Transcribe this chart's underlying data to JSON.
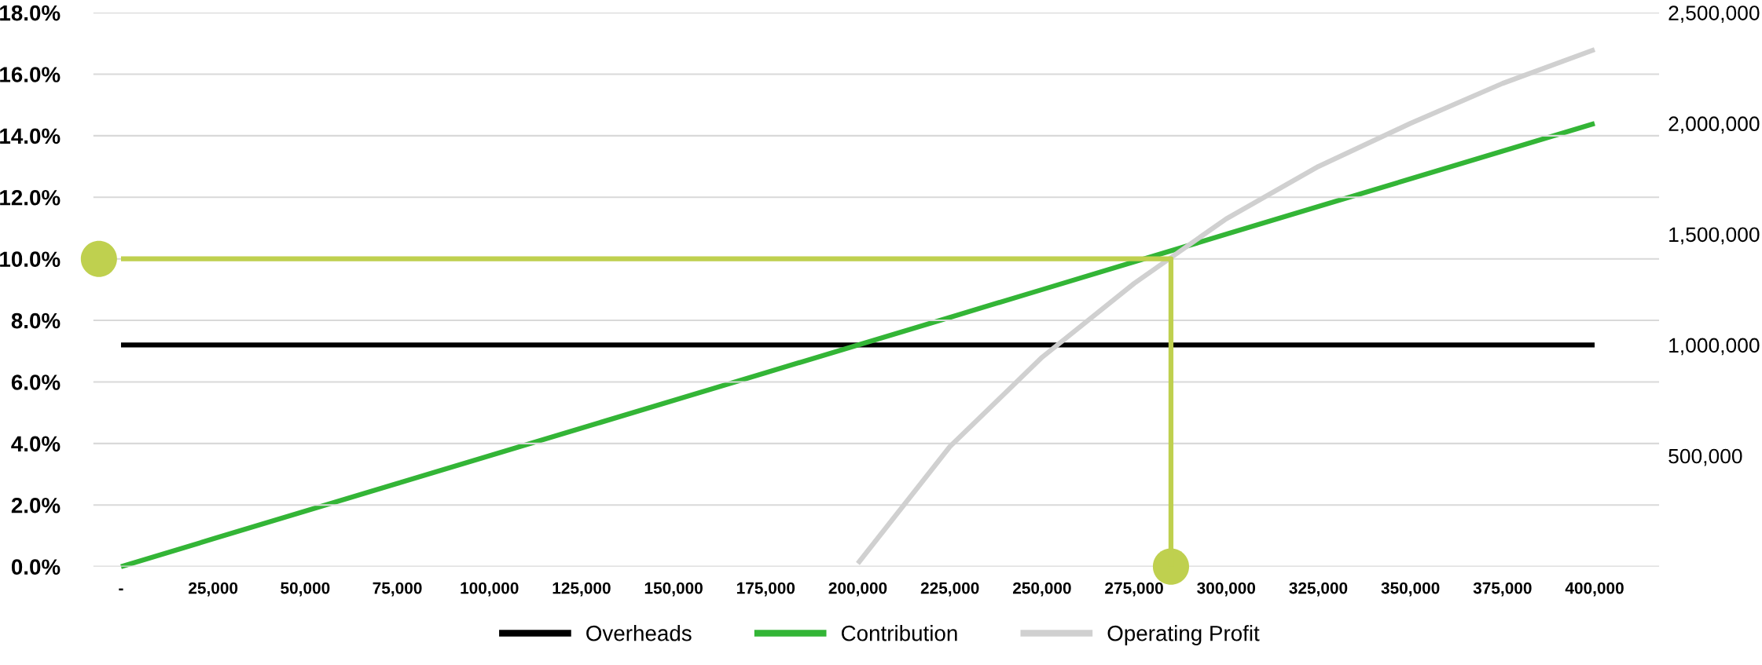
{
  "chart_data": {
    "type": "line",
    "x": [
      0,
      25000,
      50000,
      75000,
      100000,
      125000,
      150000,
      175000,
      200000,
      225000,
      250000,
      275000,
      300000,
      325000,
      350000,
      375000,
      400000
    ],
    "series": [
      {
        "name": "Overheads",
        "color": "#000000",
        "axis": "y2",
        "values": [
          1000000,
          1000000,
          1000000,
          1000000,
          1000000,
          1000000,
          1000000,
          1000000,
          1000000,
          1000000,
          1000000,
          1000000,
          1000000,
          1000000,
          1000000,
          1000000,
          1000000
        ]
      },
      {
        "name": "Contribution",
        "color": "#33b536",
        "axis": "y2",
        "values": [
          0,
          125000,
          250000,
          375000,
          500000,
          625000,
          750000,
          875000,
          1000000,
          1125000,
          1250000,
          1375000,
          1500000,
          1625000,
          1750000,
          1875000,
          2000000
        ]
      },
      {
        "name": "Operating Profit",
        "color": "#d0d0d0",
        "x": [
          200000,
          225000,
          250000,
          275000,
          300000,
          325000,
          350000,
          375000,
          400000
        ],
        "values": [
          0.1,
          3.9,
          6.8,
          9.2,
          11.3,
          13.0,
          14.4,
          15.7,
          16.8
        ]
      },
      {
        "type": "line",
        "color": "#bfd04f",
        "marker": "none",
        "x": [
          0,
          285000,
          285000
        ],
        "values": [
          10,
          10,
          0
        ]
      },
      {
        "type": "scatter",
        "color": "#bfd04f",
        "marker": "circle",
        "x": [
          -6000,
          285000
        ],
        "values": [
          10,
          0
        ]
      }
    ],
    "xlim": [
      -7500,
      417500
    ],
    "xticks": [
      {
        "value": 0,
        "label": "-"
      },
      {
        "value": 25000,
        "label": "25,000"
      },
      {
        "value": 50000,
        "label": "50,000"
      },
      {
        "value": 75000,
        "label": "75,000"
      },
      {
        "value": 100000,
        "label": "100,000"
      },
      {
        "value": 125000,
        "label": "125,000"
      },
      {
        "value": 150000,
        "label": "150,000"
      },
      {
        "value": 175000,
        "label": "175,000"
      },
      {
        "value": 200000,
        "label": "200,000"
      },
      {
        "value": 225000,
        "label": "225,000"
      },
      {
        "value": 250000,
        "label": "250,000"
      },
      {
        "value": 275000,
        "label": "275,000"
      },
      {
        "value": 300000,
        "label": "300,000"
      },
      {
        "value": 325000,
        "label": "325,000"
      },
      {
        "value": 350000,
        "label": "350,000"
      },
      {
        "value": 375000,
        "label": "375,000"
      },
      {
        "value": 400000,
        "label": "400,000"
      }
    ],
    "ylim": [
      0,
      18
    ],
    "yticks": [
      {
        "value": 0,
        "label": "0.0%"
      },
      {
        "value": 2,
        "label": "2.0%"
      },
      {
        "value": 4,
        "label": "4.0%"
      },
      {
        "value": 6,
        "label": "6.0%"
      },
      {
        "value": 8,
        "label": "8.0%"
      },
      {
        "value": 10,
        "label": "10.0%"
      },
      {
        "value": 12,
        "label": "12.0%"
      },
      {
        "value": 14,
        "label": "14.0%"
      },
      {
        "value": 16,
        "label": "16.0%"
      },
      {
        "value": 18,
        "label": "18.0%"
      }
    ],
    "y2lim": [
      0,
      2500000
    ],
    "y2ticks": [
      {
        "value": 500000,
        "label": "500,000"
      },
      {
        "value": 1000000,
        "label": "1,000,000"
      },
      {
        "value": 1500000,
        "label": "1,500,000"
      },
      {
        "value": 2000000,
        "label": "2,000,000"
      },
      {
        "value": 2500000,
        "label": "2,500,000"
      }
    ],
    "grid": "y",
    "legend": "bottom",
    "marker": "none",
    "line_style": "solid"
  }
}
